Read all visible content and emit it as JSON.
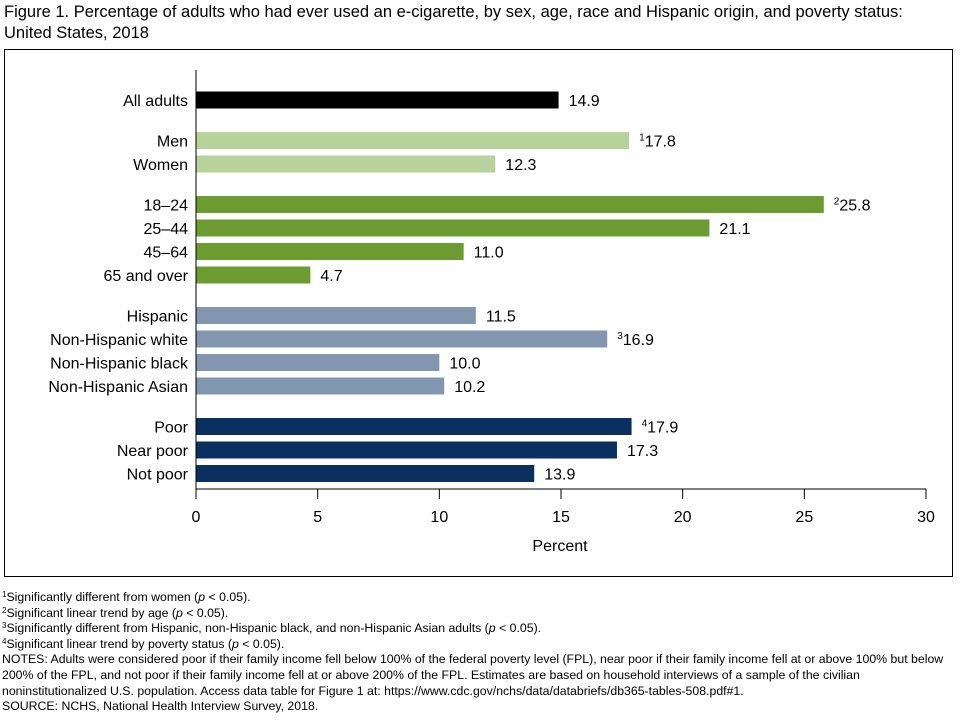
{
  "title": "Figure 1. Percentage of adults who had ever used an e-cigarette, by sex, age, race and Hispanic origin, and poverty status: United States, 2018",
  "chart_data": {
    "type": "bar",
    "orientation": "horizontal",
    "xlabel": "Percent",
    "xlim": [
      0,
      30
    ],
    "xticks": [
      0,
      5,
      10,
      15,
      20,
      25,
      30
    ],
    "grid": false,
    "groups": [
      {
        "color": "#000000",
        "bars": [
          {
            "label": "All adults",
            "value": 14.9,
            "note": ""
          }
        ]
      },
      {
        "color": "#b8d29b",
        "bars": [
          {
            "label": "Men",
            "value": 17.8,
            "note": "1"
          },
          {
            "label": "Women",
            "value": 12.3,
            "note": ""
          }
        ]
      },
      {
        "color": "#6c9c31",
        "bars": [
          {
            "label": "18–24",
            "value": 25.8,
            "note": "2"
          },
          {
            "label": "25–44",
            "value": 21.1,
            "note": ""
          },
          {
            "label": "45–64",
            "value": 11.0,
            "note": ""
          },
          {
            "label": "65 and over",
            "value": 4.7,
            "note": ""
          }
        ]
      },
      {
        "color": "#8296b0",
        "bars": [
          {
            "label": "Hispanic",
            "value": 11.5,
            "note": ""
          },
          {
            "label": "Non-Hispanic white",
            "value": 16.9,
            "note": "3"
          },
          {
            "label": "Non-Hispanic black",
            "value": 10.0,
            "note": ""
          },
          {
            "label": "Non-Hispanic Asian",
            "value": 10.2,
            "note": ""
          }
        ]
      },
      {
        "color": "#0b2f5f",
        "bars": [
          {
            "label": "Poor",
            "value": 17.9,
            "note": "4"
          },
          {
            "label": "Near poor",
            "value": 17.3,
            "note": ""
          },
          {
            "label": "Not poor",
            "value": 13.9,
            "note": ""
          }
        ]
      }
    ]
  },
  "footnotes": [
    {
      "mark": "1",
      "before": "Significantly different from women (",
      "p": "p",
      "after": " < 0.05)."
    },
    {
      "mark": "2",
      "before": "Significant linear trend by age (",
      "p": "p",
      "after": " < 0.05)."
    },
    {
      "mark": "3",
      "before": "Significantly different from Hispanic, non-Hispanic black, and non-Hispanic Asian adults (",
      "p": "p",
      "after": " < 0.05)."
    },
    {
      "mark": "4",
      "before": "Significant linear trend by poverty status (",
      "p": "p",
      "after": " < 0.05)."
    }
  ],
  "notes": "NOTES: Adults were considered poor if their family income fell below 100% of the federal poverty level (FPL), near poor if their family income fell at or above 100% but below 200% of the FPL, and not poor if their family income fell at or above 200% of the FPL. Estimates are based on household interviews of a sample of the civilian noninstitutionalized U.S. population. Access data table for Figure 1 at: https://www.cdc.gov/nchs/data/databriefs/db365-tables-508.pdf#1.",
  "source": "SOURCE: NCHS, National Health Interview Survey, 2018."
}
